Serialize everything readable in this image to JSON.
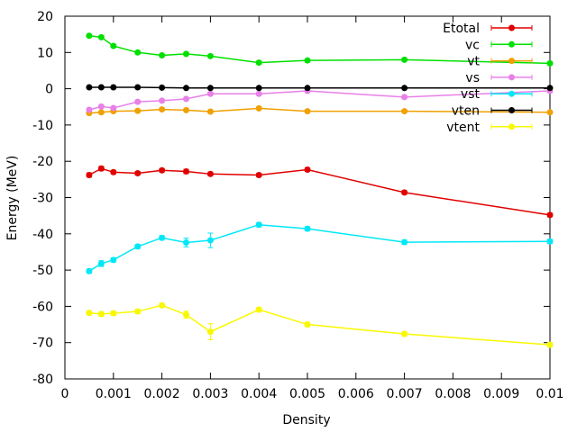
{
  "chart_data": {
    "type": "line",
    "xlabel": "Density",
    "ylabel": "Energy (MeV)",
    "xlim": [
      0,
      0.01
    ],
    "ylim": [
      -80,
      20
    ],
    "xticks": [
      0,
      0.001,
      0.002,
      0.003,
      0.004,
      0.005,
      0.006,
      0.007,
      0.008,
      0.009,
      0.01
    ],
    "xtick_labels": [
      "0",
      "0.001",
      "0.002",
      "0.003",
      "0.004",
      "0.005",
      "0.006",
      "0.007",
      "0.008",
      "0.009",
      "0.01"
    ],
    "yticks": [
      -80,
      -70,
      -60,
      -50,
      -40,
      -30,
      -20,
      -10,
      0,
      10,
      20
    ],
    "ytick_labels": [
      "-80",
      "-70",
      "-60",
      "-50",
      "-40",
      "-30",
      "-20",
      "-10",
      "0",
      "10",
      "20"
    ],
    "legend_position": "top-right",
    "grid": false,
    "x": [
      0.0005,
      0.00075,
      0.001,
      0.0015,
      0.002,
      0.0025,
      0.003,
      0.004,
      0.005,
      0.007,
      0.01
    ],
    "series": [
      {
        "name": "Etotal",
        "color": "#e00000",
        "values": [
          -23.8,
          -22.0,
          -23.0,
          -23.3,
          -22.5,
          -22.8,
          -23.5,
          -23.8,
          -22.3,
          -28.6,
          -34.8
        ],
        "errors": [
          0.6,
          0.6,
          0.5,
          0.5,
          0.5,
          0.6,
          0.5,
          0.5,
          0.5,
          0.5,
          0.5
        ]
      },
      {
        "name": "vc",
        "color": "#00e000",
        "values": [
          14.6,
          14.2,
          11.8,
          10.0,
          9.2,
          9.6,
          9.0,
          7.2,
          7.8,
          8.0,
          7.0
        ],
        "errors": [
          0.4,
          0.4,
          0.4,
          0.4,
          0.4,
          0.4,
          0.4,
          0.4,
          0.4,
          0.4,
          0.4
        ]
      },
      {
        "name": "vt",
        "color": "#f0a000",
        "values": [
          -6.7,
          -6.5,
          -6.2,
          -6.1,
          -5.7,
          -5.9,
          -6.3,
          -5.4,
          -6.2,
          -6.2,
          -6.5
        ],
        "errors": [
          0.3,
          0.3,
          0.3,
          0.3,
          0.3,
          0.3,
          0.3,
          0.3,
          0.3,
          0.3,
          0.3
        ]
      },
      {
        "name": "vs",
        "color": "#e880e8",
        "values": [
          -5.8,
          -4.9,
          -5.3,
          -3.6,
          -3.3,
          -2.8,
          -1.4,
          -1.4,
          -0.6,
          -2.3,
          -0.6
        ],
        "errors": [
          0.4,
          0.4,
          0.4,
          0.4,
          0.4,
          0.4,
          0.4,
          0.4,
          0.4,
          0.4,
          0.4
        ]
      },
      {
        "name": "vst",
        "color": "#00e8f8",
        "values": [
          -50.3,
          -48.2,
          -47.2,
          -43.5,
          -41.1,
          -42.4,
          -41.8,
          -37.5,
          -38.6,
          -42.3,
          -42.1
        ],
        "errors": [
          0.6,
          0.8,
          0.6,
          0.6,
          0.6,
          1.2,
          2.0,
          0.6,
          0.6,
          0.6,
          0.6
        ]
      },
      {
        "name": "vten",
        "color": "#000000",
        "values": [
          0.4,
          0.4,
          0.4,
          0.4,
          0.3,
          0.2,
          0.2,
          0.2,
          0.2,
          0.2,
          0.2
        ],
        "errors": [
          0.2,
          0.2,
          0.2,
          0.2,
          0.2,
          0.2,
          0.2,
          0.2,
          0.2,
          0.2,
          0.2
        ]
      },
      {
        "name": "vtent",
        "color": "#f8f800",
        "values": [
          -61.8,
          -62.1,
          -61.9,
          -61.4,
          -59.7,
          -62.3,
          -67.0,
          -60.9,
          -65.0,
          -67.6,
          -70.6
        ],
        "errors": [
          0.6,
          0.6,
          0.6,
          0.6,
          0.6,
          1.0,
          2.2,
          0.6,
          0.6,
          0.6,
          0.6
        ]
      }
    ]
  }
}
